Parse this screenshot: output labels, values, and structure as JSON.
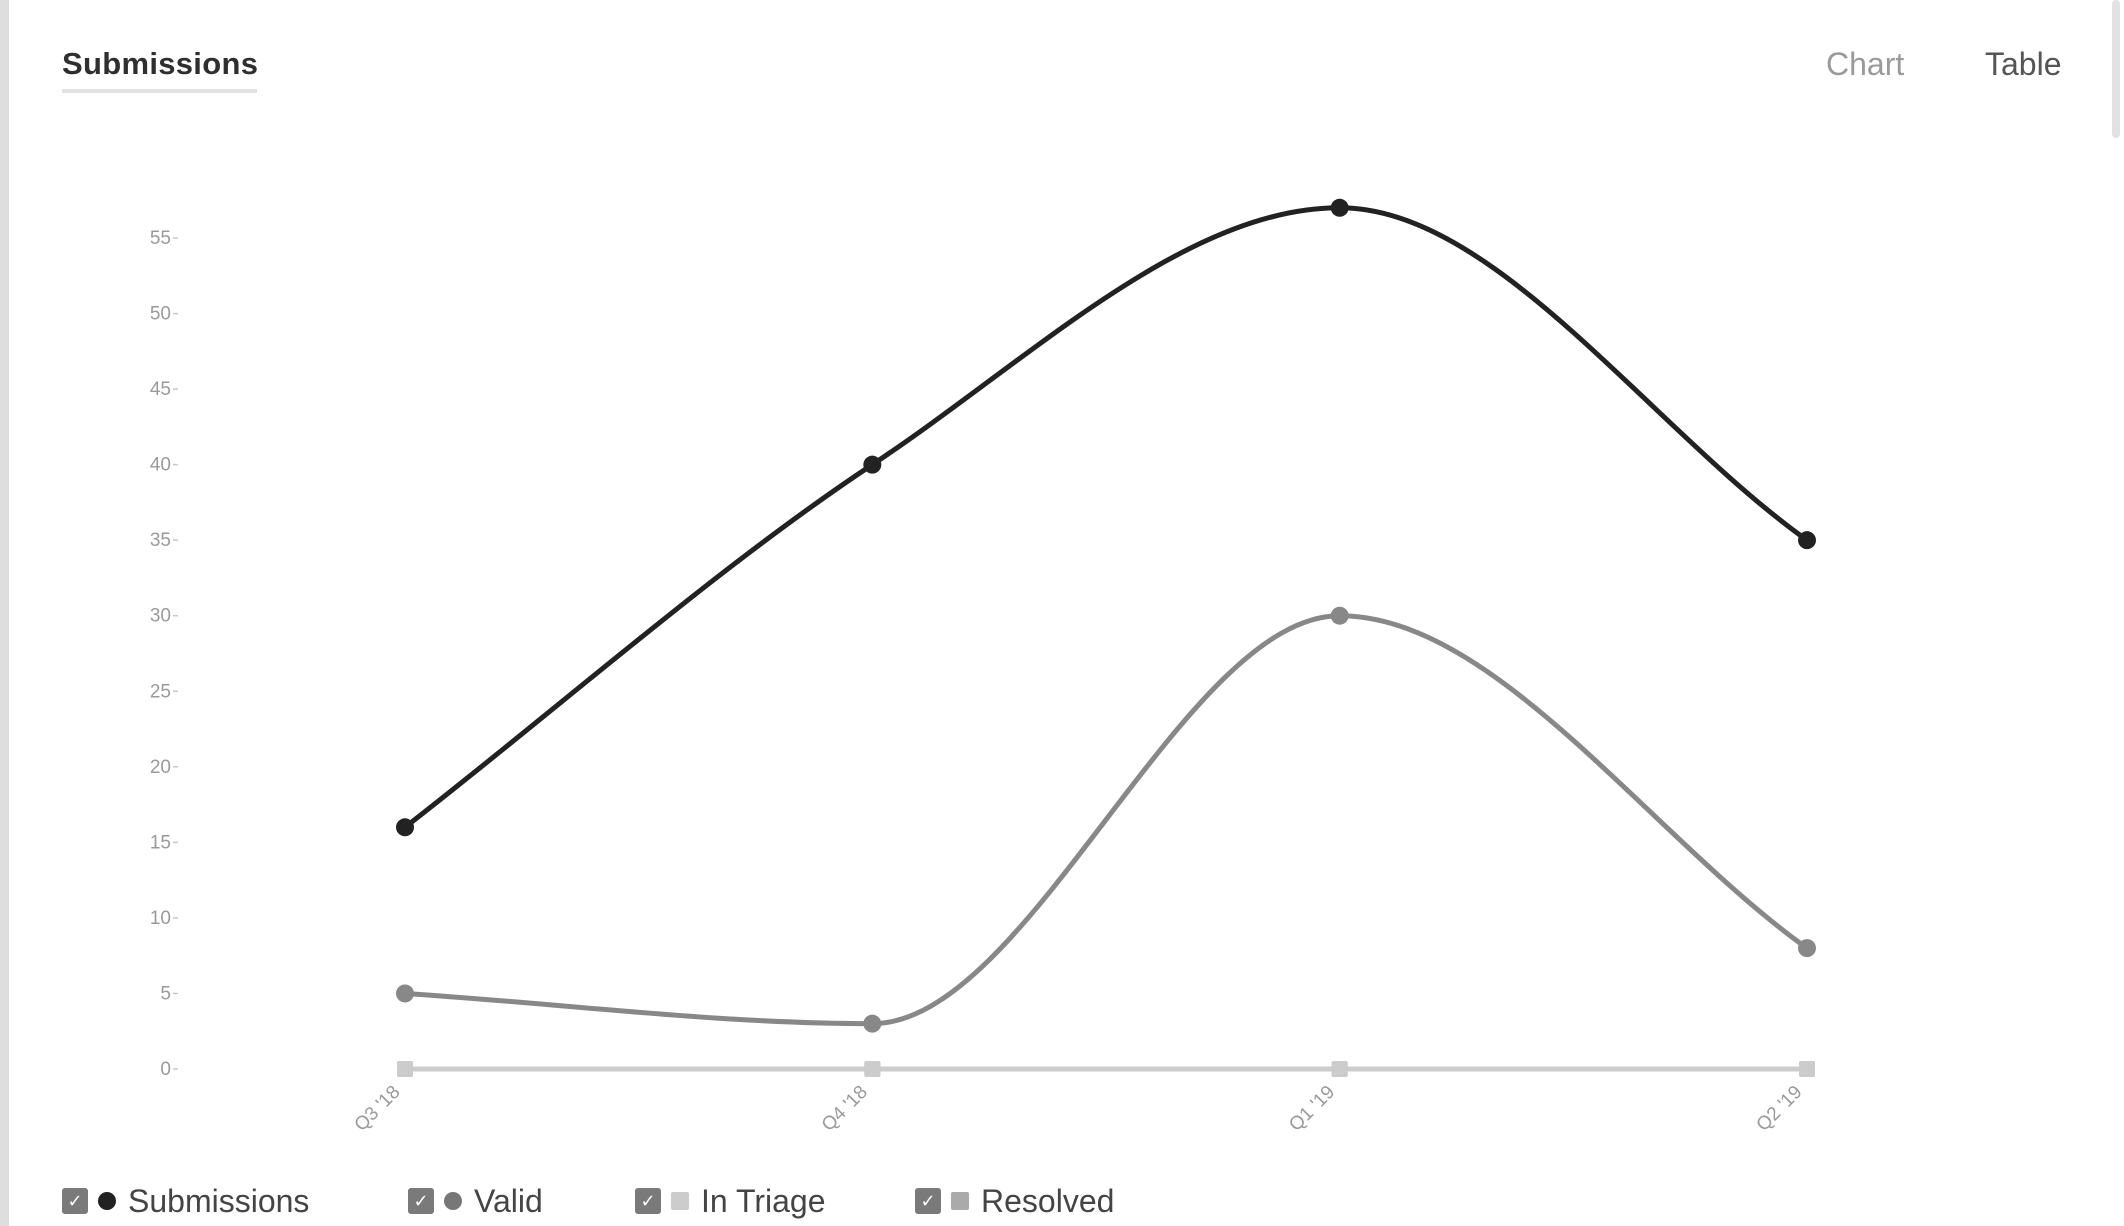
{
  "header": {
    "title": "Submissions",
    "view_chart_label": "Chart",
    "view_table_label": "Table"
  },
  "chart_data": {
    "type": "line",
    "categories": [
      "Q3 '18",
      "Q4 '18",
      "Q1 '19",
      "Q2 '19"
    ],
    "series": [
      {
        "name": "Submissions",
        "values": [
          16,
          40,
          57,
          35
        ],
        "color": "#222222",
        "marker": "circle"
      },
      {
        "name": "Valid",
        "values": [
          5,
          3,
          30,
          8
        ],
        "color": "#888888",
        "marker": "circle"
      },
      {
        "name": "In Triage",
        "values": [
          0,
          0,
          0,
          0
        ],
        "color": "#cccccc",
        "marker": "square"
      },
      {
        "name": "Resolved",
        "values": [
          0,
          0,
          0,
          0
        ],
        "color": "#bbbbbb",
        "marker": "square"
      }
    ],
    "y_ticks": [
      0,
      5,
      10,
      15,
      20,
      25,
      30,
      35,
      40,
      45,
      50,
      55
    ],
    "ylim": [
      0,
      57
    ],
    "legend_position": "bottom-left",
    "grid": false
  },
  "legend": {
    "items": [
      {
        "label": "Submissions",
        "checked": true,
        "color": "#222222",
        "marker": "circle"
      },
      {
        "label": "Valid",
        "checked": true,
        "color": "#777777",
        "marker": "circle"
      },
      {
        "label": "In Triage",
        "checked": true,
        "color": "#cccccc",
        "marker": "square"
      },
      {
        "label": "Resolved",
        "checked": true,
        "color": "#aaaaaa",
        "marker": "square"
      }
    ]
  }
}
